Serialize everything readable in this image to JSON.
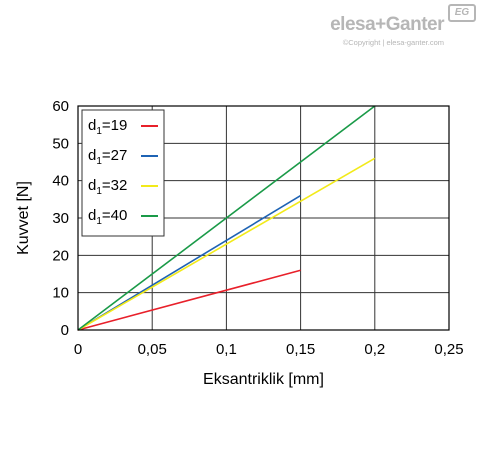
{
  "logo": {
    "brand": "elesa+Ganter",
    "badge": "EG",
    "copyright": "©Copyright | elesa-ganter.com"
  },
  "chart_data": {
    "type": "line",
    "title": "",
    "xlabel": "Eksantriklik [mm]",
    "ylabel": "Kuvvet [N]",
    "xlim": [
      0,
      0.25
    ],
    "ylim": [
      0,
      60
    ],
    "x_ticks": [
      0,
      0.05,
      0.1,
      0.15,
      0.2,
      0.25
    ],
    "x_tick_labels": [
      "0",
      "0,05",
      "0,1",
      "0,15",
      "0,2",
      "0,25"
    ],
    "y_ticks": [
      0,
      10,
      20,
      30,
      40,
      50,
      60
    ],
    "y_tick_labels": [
      "0",
      "10",
      "20",
      "30",
      "40",
      "50",
      "60"
    ],
    "grid": true,
    "legend_position": "top-left",
    "series": [
      {
        "name": "d1=19",
        "label_main": "d",
        "label_sub": "1",
        "label_rest": "=19",
        "color": "#e8202a",
        "x": [
          0,
          0.15
        ],
        "y": [
          0,
          16
        ]
      },
      {
        "name": "d1=27",
        "label_main": "d",
        "label_sub": "1",
        "label_rest": "=27",
        "color": "#1e63b4",
        "x": [
          0,
          0.15
        ],
        "y": [
          0,
          36
        ]
      },
      {
        "name": "d1=32",
        "label_main": "d",
        "label_sub": "1",
        "label_rest": "=32",
        "color": "#f2ea1a",
        "x": [
          0,
          0.2
        ],
        "y": [
          0,
          46
        ]
      },
      {
        "name": "d1=40",
        "label_main": "d",
        "label_sub": "1",
        "label_rest": "=40",
        "color": "#1a9a48",
        "x": [
          0,
          0.2
        ],
        "y": [
          0,
          60
        ]
      }
    ]
  }
}
